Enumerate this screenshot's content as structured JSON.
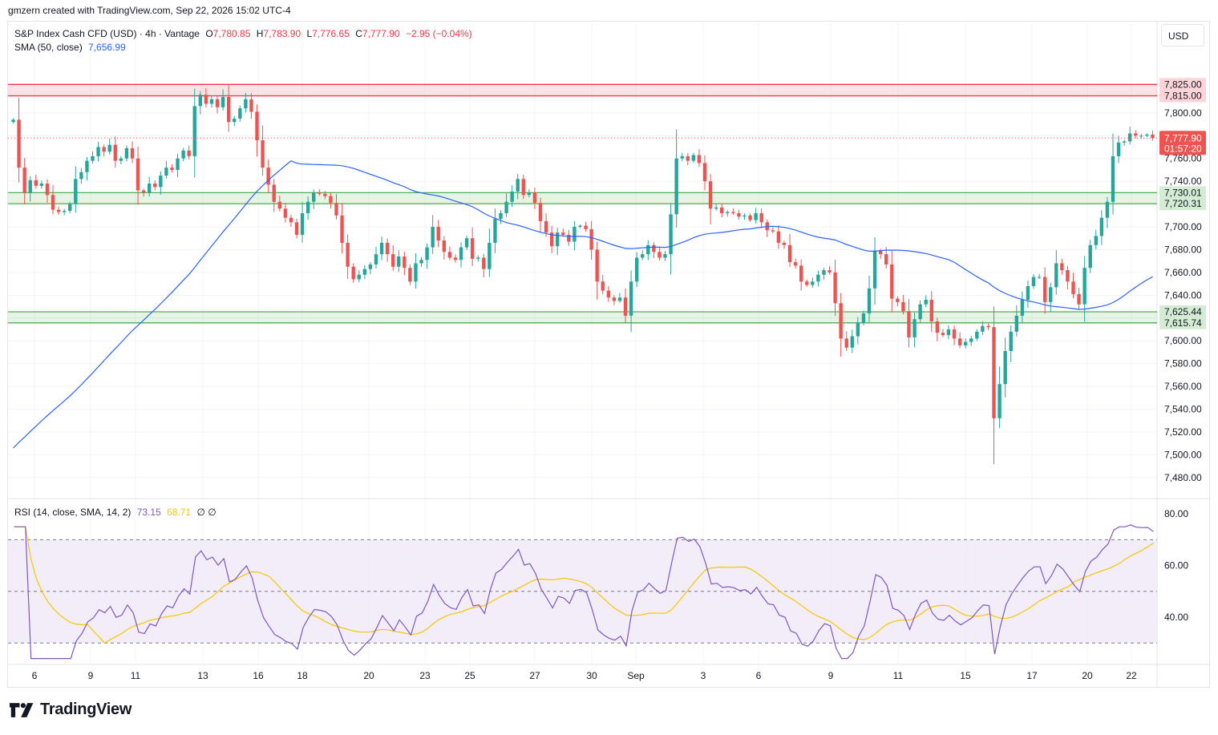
{
  "header": {
    "attribution": "gmzern created with TradingView.com, Sep 22, 2026 15:02 UTC-4"
  },
  "legend": {
    "symbol": "S&P Index Cash CFD (USD) · 4h · Vantage",
    "o_key": "O",
    "o_val": "7,780.85",
    "h_key": "H",
    "h_val": "7,783.90",
    "l_key": "L",
    "l_val": "7,776.65",
    "c_key": "C",
    "c_val": "7,777.90",
    "change": "−2.95 (−0.04%)",
    "sma_label": "SMA (50, close)",
    "sma_val": "7,656.99",
    "rsi_label": "RSI (14, close, SMA, 14, 2)",
    "rsi_val": "73.15",
    "rsi_ma_val": "68.71",
    "rsi_na": "∅ ∅"
  },
  "currency_button": "USD",
  "logo_text": "TradingView",
  "colors": {
    "up": "#26a69a",
    "down": "#ef5350",
    "sma": "#2962ff",
    "rsi": "#7e57c2",
    "rsi_ma": "#f7c600",
    "resistance_zone": "#f23645",
    "support_zone": "#4caf50",
    "rsi_band": "#ede7f6"
  },
  "chart_data": [
    {
      "type": "candlestick",
      "title": "S&P Index Cash CFD (USD) · 4h · Vantage",
      "ylim": [
        7470,
        7840
      ],
      "y_ticks": [
        "7,480.00",
        "7,500.00",
        "7,520.00",
        "7,540.00",
        "7,560.00",
        "7,580.00",
        "7,600.00",
        "7,620.00",
        "7,640.00",
        "7,660.00",
        "7,680.00",
        "7,700.00",
        "7,720.00",
        "7,740.00",
        "7,760.00",
        "7,780.00",
        "7,800.00"
      ],
      "x_ticks": [
        "6",
        "9",
        "11",
        "13",
        "16",
        "18",
        "20",
        "23",
        "25",
        "27",
        "30",
        "Sep",
        "3",
        "6",
        "9",
        "11",
        "15",
        "17",
        "20",
        "22"
      ],
      "grid": true,
      "zones": [
        {
          "name": "resistance",
          "from": 7815.0,
          "to": 7825.0,
          "labels": [
            "7,825.00",
            "7,815.00"
          ]
        },
        {
          "name": "support-upper",
          "from": 7720.31,
          "to": 7730.01,
          "labels": [
            "7,730.01",
            "7,720.31"
          ]
        },
        {
          "name": "support-lower",
          "from": 7615.74,
          "to": 7625.44,
          "labels": [
            "7,625.44",
            "7,615.74"
          ]
        }
      ],
      "last_price": {
        "value": 7777.9,
        "label": "7,777.90",
        "countdown": "01:57:20"
      },
      "close_series": [
        7794,
        7752,
        7730,
        7741,
        7736,
        7738,
        7728,
        7715,
        7713,
        7714,
        7720,
        7742,
        7748,
        7758,
        7762,
        7770,
        7766,
        7772,
        7758,
        7760,
        7769,
        7760,
        7732,
        7730,
        7738,
        7735,
        7745,
        7752,
        7750,
        7760,
        7767,
        7762,
        7806,
        7816,
        7808,
        7812,
        7805,
        7814,
        7792,
        7795,
        7804,
        7812,
        7801,
        7776,
        7752,
        7737,
        7722,
        7716,
        7708,
        7704,
        7693,
        7712,
        7722,
        7730,
        7729,
        7727,
        7721,
        7710,
        7686,
        7665,
        7654,
        7658,
        7663,
        7667,
        7676,
        7686,
        7676,
        7665,
        7674,
        7664,
        7652,
        7668,
        7671,
        7682,
        7700,
        7688,
        7678,
        7673,
        7671,
        7682,
        7690,
        7672,
        7673,
        7663,
        7686,
        7707,
        7712,
        7722,
        7731,
        7742,
        7728,
        7730,
        7721,
        7705,
        7695,
        7683,
        7695,
        7693,
        7687,
        7700,
        7701,
        7698,
        7680,
        7652,
        7644,
        7638,
        7635,
        7638,
        7622,
        7652,
        7673,
        7676,
        7684,
        7678,
        7673,
        7676,
        7711,
        7760,
        7762,
        7758,
        7763,
        7756,
        7740,
        7716,
        7717,
        7712,
        7713,
        7712,
        7709,
        7710,
        7706,
        7712,
        7704,
        7697,
        7696,
        7686,
        7684,
        7669,
        7666,
        7652,
        7649,
        7652,
        7658,
        7662,
        7660,
        7633,
        7602,
        7594,
        7604,
        7616,
        7624,
        7646,
        7679,
        7676,
        7667,
        7637,
        7634,
        7626,
        7603,
        7619,
        7632,
        7636,
        7617,
        7607,
        7605,
        7610,
        7602,
        7596,
        7599,
        7602,
        7608,
        7613,
        7612,
        7532,
        7562,
        7591,
        7608,
        7622,
        7636,
        7648,
        7656,
        7656,
        7634,
        7647,
        7668,
        7662,
        7652,
        7641,
        7632,
        7664,
        7684,
        7692,
        7708,
        7722,
        7762,
        7774,
        7775,
        7782,
        7780,
        7780,
        7781,
        7778
      ],
      "sma_series_label": "SMA (50, close)",
      "sma_last": 7656.99
    },
    {
      "type": "line",
      "title": "RSI (14, close, SMA, 14, 2)",
      "ylim": [
        22,
        85
      ],
      "y_ticks": [
        "80.00",
        "60.00",
        "40.00"
      ],
      "bands": {
        "upper": 70,
        "middle": 50,
        "lower": 30
      },
      "series": [
        {
          "name": "RSI",
          "last": 73.15
        },
        {
          "name": "RSI-based MA",
          "last": 68.71
        }
      ]
    }
  ]
}
